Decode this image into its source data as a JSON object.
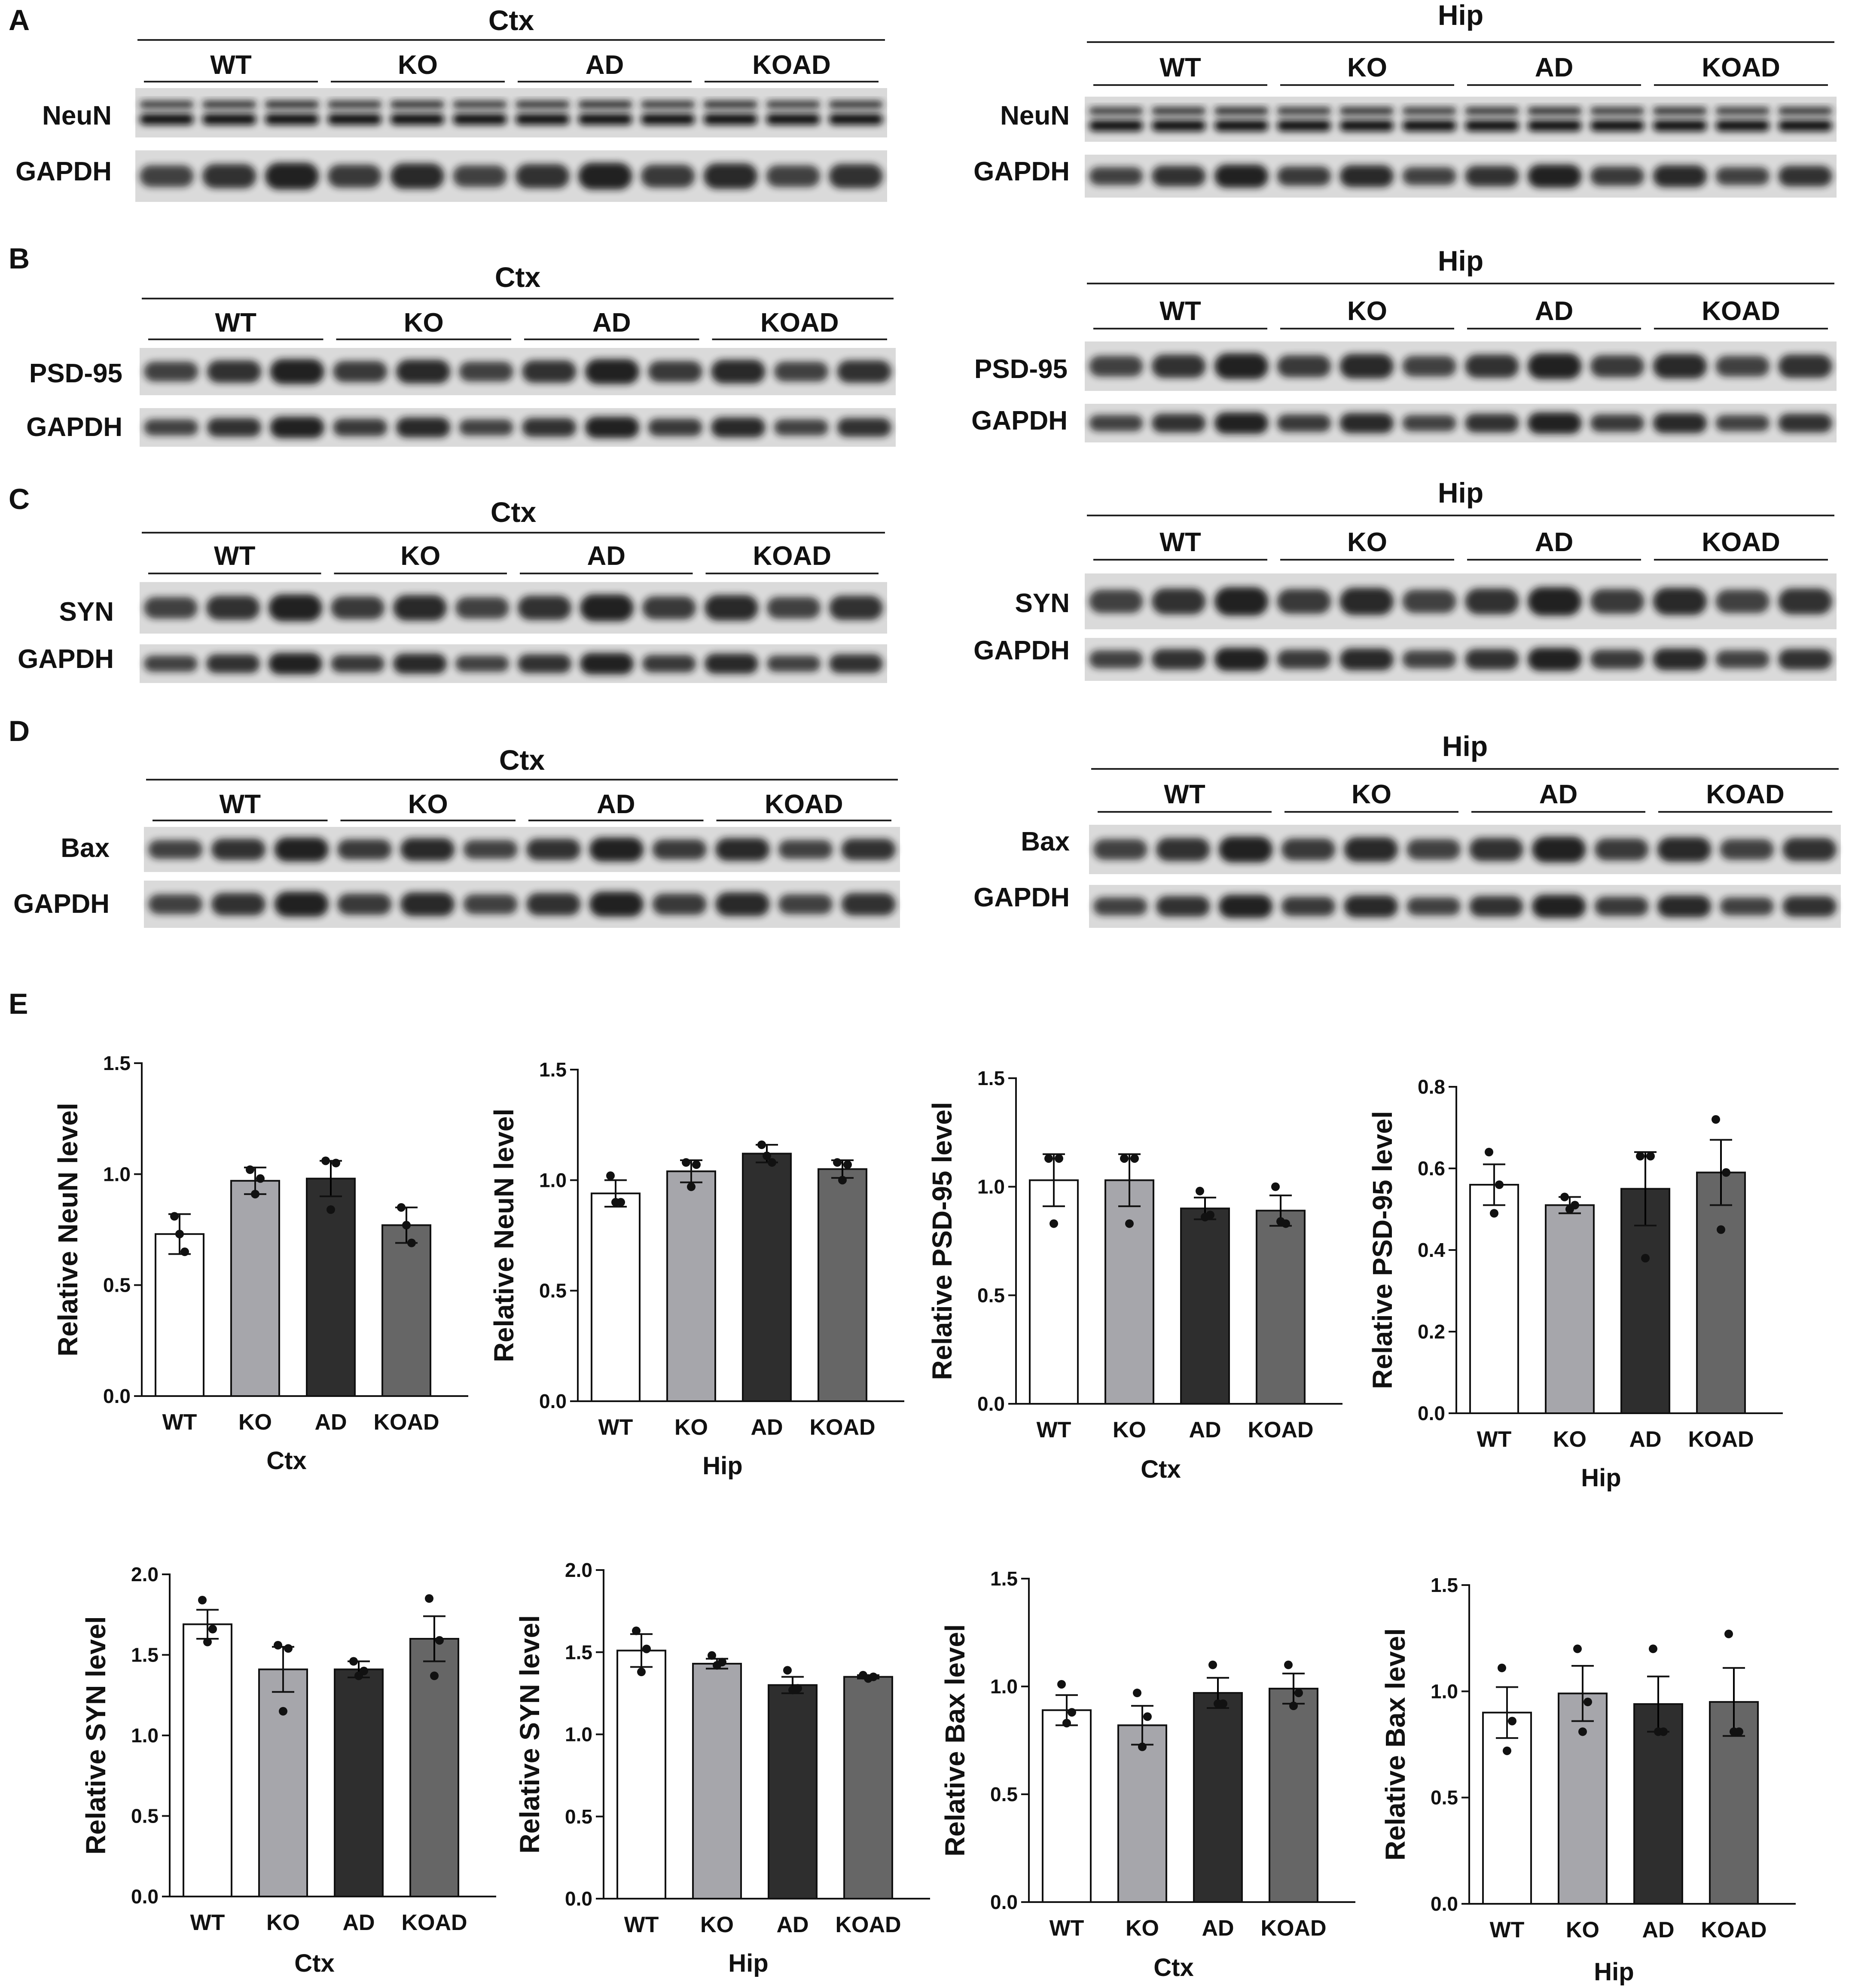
{
  "panel_letters": [
    "A",
    "B",
    "C",
    "D",
    "E"
  ],
  "group_labels": [
    "WT",
    "KO",
    "AD",
    "KOAD"
  ],
  "blots": [
    {
      "panel": "A",
      "region": "Ctx",
      "proteins": [
        "NeuN",
        "GAPDH"
      ]
    },
    {
      "panel": "A",
      "region": "Hip",
      "proteins": [
        "NeuN",
        "GAPDH"
      ]
    },
    {
      "panel": "B",
      "region": "Ctx",
      "proteins": [
        "PSD-95",
        "GAPDH"
      ]
    },
    {
      "panel": "B",
      "region": "Hip",
      "proteins": [
        "PSD-95",
        "GAPDH"
      ]
    },
    {
      "panel": "C",
      "region": "Ctx",
      "proteins": [
        "SYN",
        "GAPDH"
      ]
    },
    {
      "panel": "C",
      "region": "Hip",
      "proteins": [
        "SYN",
        "GAPDH"
      ]
    },
    {
      "panel": "D",
      "region": "Ctx",
      "proteins": [
        "Bax",
        "GAPDH"
      ]
    },
    {
      "panel": "D",
      "region": "Hip",
      "proteins": [
        "Bax",
        "GAPDH"
      ]
    }
  ],
  "colors": {
    "WT": "#ffffff",
    "KO": "#a6a6ab",
    "AD": "#2e2e2e",
    "KOAD": "#666666"
  },
  "chart_data": [
    {
      "type": "bar",
      "categories": [
        "WT",
        "KO",
        "AD",
        "KOAD"
      ],
      "values": [
        0.73,
        0.97,
        0.98,
        0.77
      ],
      "errors": [
        0.09,
        0.06,
        0.08,
        0.08
      ],
      "points": [
        [
          0.81,
          0.65,
          0.73
        ],
        [
          1.02,
          0.98,
          0.91
        ],
        [
          1.06,
          1.05,
          0.84
        ],
        [
          0.85,
          0.69,
          0.77
        ]
      ],
      "ylabel": "Relative NeuN level",
      "xlabel": "Ctx",
      "ylim": [
        0,
        1.5
      ],
      "yticks": [
        0.0,
        0.5,
        1.0,
        1.5
      ]
    },
    {
      "type": "bar",
      "categories": [
        "WT",
        "KO",
        "AD",
        "KOAD"
      ],
      "values": [
        0.94,
        1.04,
        1.12,
        1.05
      ],
      "errors": [
        0.06,
        0.05,
        0.04,
        0.04
      ],
      "points": [
        [
          1.02,
          0.9,
          0.9
        ],
        [
          1.08,
          1.07,
          0.97
        ],
        [
          1.16,
          1.08,
          1.11
        ],
        [
          1.08,
          1.07,
          1.0
        ]
      ],
      "ylabel": "Relative NeuN level",
      "xlabel": "Hip",
      "ylim": [
        0,
        1.5
      ],
      "yticks": [
        0.0,
        0.5,
        1.0,
        1.5
      ]
    },
    {
      "type": "bar",
      "categories": [
        "WT",
        "KO",
        "AD",
        "KOAD"
      ],
      "values": [
        1.03,
        1.03,
        0.9,
        0.89
      ],
      "errors": [
        0.12,
        0.12,
        0.05,
        0.07
      ],
      "points": [
        [
          1.13,
          1.13,
          0.83
        ],
        [
          1.13,
          1.13,
          0.83
        ],
        [
          0.98,
          0.87,
          0.86
        ],
        [
          1.0,
          0.83,
          0.84
        ]
      ],
      "ylabel": "Relative  PSD-95 level",
      "xlabel": "Ctx",
      "ylim": [
        0,
        1.5
      ],
      "yticks": [
        0.0,
        0.5,
        1.0,
        1.5
      ]
    },
    {
      "type": "bar",
      "categories": [
        "WT",
        "KO",
        "AD",
        "KOAD"
      ],
      "values": [
        0.56,
        0.51,
        0.55,
        0.59
      ],
      "errors": [
        0.05,
        0.02,
        0.09,
        0.08
      ],
      "points": [
        [
          0.64,
          0.56,
          0.49
        ],
        [
          0.53,
          0.51,
          0.5
        ],
        [
          0.63,
          0.63,
          0.38
        ],
        [
          0.72,
          0.59,
          0.45
        ]
      ],
      "ylabel": "Relative PSD-95 level",
      "xlabel": "Hip",
      "ylim": [
        0,
        0.8
      ],
      "yticks": [
        0.0,
        0.2,
        0.4,
        0.6,
        0.8
      ]
    },
    {
      "type": "bar",
      "categories": [
        "WT",
        "KO",
        "AD",
        "KOAD"
      ],
      "values": [
        1.69,
        1.41,
        1.41,
        1.6
      ],
      "errors": [
        0.09,
        0.14,
        0.05,
        0.14
      ],
      "points": [
        [
          1.84,
          1.66,
          1.58
        ],
        [
          1.56,
          1.54,
          1.15
        ],
        [
          1.46,
          1.4,
          1.37
        ],
        [
          1.85,
          1.59,
          1.37
        ]
      ],
      "ylabel": "Relative  SYN level",
      "xlabel": "Ctx",
      "ylim": [
        0,
        2.0
      ],
      "yticks": [
        0.0,
        0.5,
        1.0,
        1.5,
        2.0
      ]
    },
    {
      "type": "bar",
      "categories": [
        "WT",
        "KO",
        "AD",
        "KOAD"
      ],
      "values": [
        1.51,
        1.43,
        1.3,
        1.35
      ],
      "errors": [
        0.1,
        0.03,
        0.05,
        0.01
      ],
      "points": [
        [
          1.63,
          1.52,
          1.38
        ],
        [
          1.48,
          1.44,
          1.42
        ],
        [
          1.39,
          1.28,
          1.27
        ],
        [
          1.36,
          1.35,
          1.34
        ]
      ],
      "ylabel": "Relative SYN level",
      "xlabel": "Hip",
      "ylim": [
        0,
        2.0
      ],
      "yticks": [
        0.0,
        0.5,
        1.0,
        1.5,
        2.0
      ]
    },
    {
      "type": "bar",
      "categories": [
        "WT",
        "KO",
        "AD",
        "KOAD"
      ],
      "values": [
        0.89,
        0.82,
        0.97,
        0.99
      ],
      "errors": [
        0.07,
        0.09,
        0.07,
        0.07
      ],
      "points": [
        [
          1.01,
          0.88,
          0.83
        ],
        [
          0.97,
          0.86,
          0.72
        ],
        [
          1.1,
          0.92,
          0.92
        ],
        [
          1.1,
          0.97,
          0.91
        ]
      ],
      "ylabel": "Relative  Bax level",
      "xlabel": "Ctx",
      "ylim": [
        0,
        1.5
      ],
      "yticks": [
        0.0,
        0.5,
        1.0,
        1.5
      ]
    },
    {
      "type": "bar",
      "categories": [
        "WT",
        "KO",
        "AD",
        "KOAD"
      ],
      "values": [
        0.9,
        0.99,
        0.94,
        0.95
      ],
      "errors": [
        0.12,
        0.13,
        0.13,
        0.16
      ],
      "points": [
        [
          1.11,
          0.86,
          0.72
        ],
        [
          1.2,
          0.95,
          0.81
        ],
        [
          1.2,
          0.81,
          0.81
        ],
        [
          1.27,
          0.81,
          0.81
        ]
      ],
      "ylabel": "Relative  Bax level",
      "xlabel": "Hip",
      "ylim": [
        0,
        1.5
      ],
      "yticks": [
        0.0,
        0.5,
        1.0,
        1.5
      ]
    }
  ]
}
